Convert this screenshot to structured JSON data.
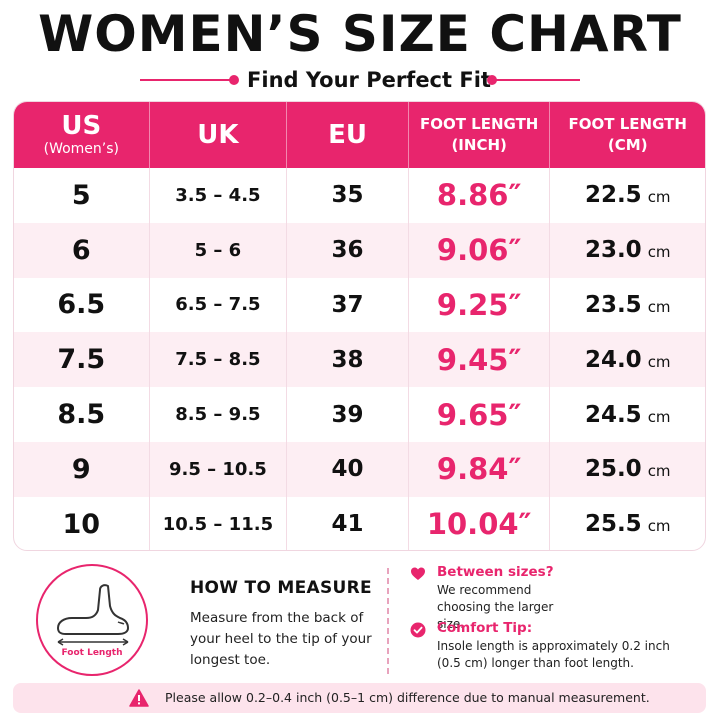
{
  "header": {
    "title": "WOMEN’S SIZE CHART",
    "subtitle": "Find Your Perfect Fit"
  },
  "colors": {
    "accent": "#e8256d",
    "row_alt": "#fdeef3",
    "notice_bg": "#fde3ec"
  },
  "table": {
    "headers": {
      "us_main": "US",
      "us_sub": "(Women’s)",
      "uk": "UK",
      "eu": "EU",
      "inch_line1": "FOOT LENGTH",
      "inch_line2": "(INCH)",
      "cm_line1": "FOOT LENGTH",
      "cm_line2": "(CM)"
    },
    "rows": [
      {
        "us": "5",
        "uk": "3.5 – 4.5",
        "eu": "35",
        "inch": "8.86″",
        "cm": "22.5",
        "unit": "cm"
      },
      {
        "us": "6",
        "uk": "5 – 6",
        "eu": "36",
        "inch": "9.06″",
        "cm": "23.0",
        "unit": "cm"
      },
      {
        "us": "6.5",
        "uk": "6.5 – 7.5",
        "eu": "37",
        "inch": "9.25″",
        "cm": "23.5",
        "unit": "cm"
      },
      {
        "us": "7.5",
        "uk": "7.5 – 8.5",
        "eu": "38",
        "inch": "9.45″",
        "cm": "24.0",
        "unit": "cm"
      },
      {
        "us": "8.5",
        "uk": "8.5 – 9.5",
        "eu": "39",
        "inch": "9.65″",
        "cm": "24.5",
        "unit": "cm"
      },
      {
        "us": "9",
        "uk": "9.5 – 10.5",
        "eu": "40",
        "inch": "9.84″",
        "cm": "25.0",
        "unit": "cm"
      },
      {
        "us": "10",
        "uk": "10.5 – 11.5",
        "eu": "41",
        "inch": "10.04″",
        "cm": "25.5",
        "unit": "cm"
      }
    ]
  },
  "measure": {
    "foot_label": "Foot Length",
    "foot_icon": "foot-outline-icon",
    "title": "HOW TO MEASURE",
    "text": "Measure from the back of your heel to the tip of your longest toe."
  },
  "tips": [
    {
      "icon": "heart-icon",
      "title": "Between sizes?",
      "text": "We recommend choosing the larger size."
    },
    {
      "icon": "check-circle-icon",
      "title": "Comfort Tip:",
      "text": "Insole length is approximately 0.2 inch (0.5 cm) longer than foot length."
    }
  ],
  "notice": {
    "icon": "warning-icon",
    "text": "Please allow 0.2–0.4 inch (0.5–1 cm) difference due to manual measurement."
  }
}
